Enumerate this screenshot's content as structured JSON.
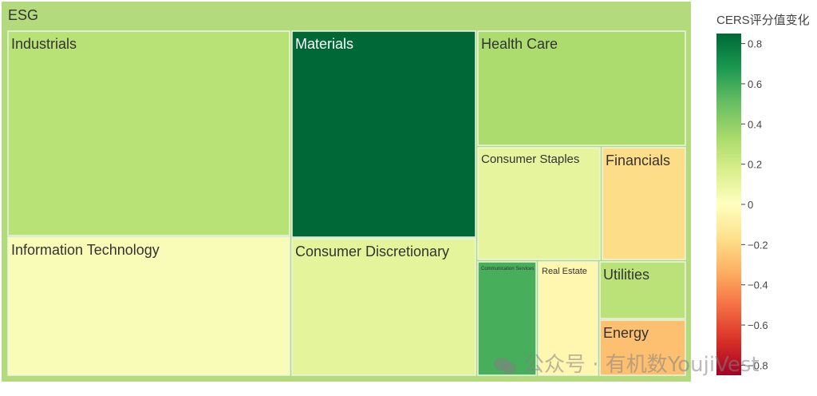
{
  "chart_data": {
    "type": "treemap",
    "root": "ESG",
    "items": [
      {
        "name": "Industrials",
        "value": 0.28
      },
      {
        "name": "Materials",
        "value": 0.85
      },
      {
        "name": "Health Care",
        "value": 0.32
      },
      {
        "name": "Information Technology",
        "value": 0.03
      },
      {
        "name": "Consumer Discretionary",
        "value": 0.12
      },
      {
        "name": "Consumer Staples",
        "value": 0.11
      },
      {
        "name": "Financials",
        "value": -0.18
      },
      {
        "name": "Communication Services",
        "value": 0.58
      },
      {
        "name": "Real Estate",
        "value": -0.05
      },
      {
        "name": "Utilities",
        "value": 0.27
      },
      {
        "name": "Energy",
        "value": -0.28
      }
    ],
    "colorbar": {
      "title": "CERS评分值变化",
      "range": [
        -0.85,
        0.85
      ],
      "ticks": [
        "0.8",
        "0.6",
        "0.4",
        "0.2",
        "0",
        "−0.2",
        "−0.4",
        "−0.6",
        "−0.8"
      ],
      "colorscale": [
        "#a50026",
        "#d73027",
        "#f46d43",
        "#fdae61",
        "#fee08b",
        "#ffffbf",
        "#d9ef8b",
        "#a6d96a",
        "#66bd63",
        "#1a9850",
        "#006837"
      ]
    }
  },
  "watermark": "公众号 · 有机数YoujiVest"
}
